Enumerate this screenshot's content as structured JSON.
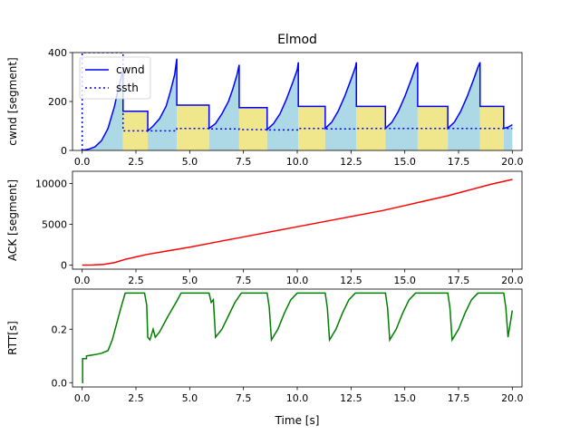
{
  "figure": {
    "title": "Elmod",
    "xlabel": "Time [s]"
  },
  "chart_data": [
    {
      "type": "line",
      "ylabel": "cwnd [segment]",
      "xlim": [
        -0.45,
        20.45
      ],
      "ylim": [
        0,
        400
      ],
      "xticks": [
        0,
        2.5,
        5,
        7.5,
        10,
        12.5,
        15,
        17.5,
        20
      ],
      "xtick_labels": [
        "0.0",
        "2.5",
        "5.0",
        "7.5",
        "10.0",
        "12.5",
        "15.0",
        "17.5",
        "20.0"
      ],
      "yticks": [
        0,
        200,
        400
      ],
      "ytick_labels": [
        "0",
        "200",
        "400"
      ],
      "legend": {
        "position": "top-left",
        "entries": [
          "cwnd",
          "ssth"
        ]
      },
      "shading": {
        "slow_start_color": "#add8e6",
        "congestion_avoidance_color": "#f0e68c",
        "phase_boundaries": [
          1.9,
          3.05,
          4.4,
          5.9,
          7.3,
          8.6,
          10.05,
          11.3,
          12.75,
          14.1,
          15.6,
          17.0,
          18.5,
          19.6,
          20.0
        ]
      },
      "series": [
        {
          "name": "cwnd",
          "color": "#0000ff",
          "style": "solid",
          "x": [
            0,
            0.3,
            0.6,
            0.9,
            1.2,
            1.5,
            1.7,
            1.9,
            1.9,
            3.05,
            3.05,
            3.3,
            3.6,
            3.9,
            4.1,
            4.3,
            4.4,
            4.4,
            5.9,
            5.9,
            6.2,
            6.5,
            6.8,
            7.0,
            7.2,
            7.3,
            7.3,
            8.6,
            8.6,
            8.9,
            9.2,
            9.5,
            9.8,
            10.0,
            10.05,
            10.05,
            11.3,
            11.3,
            11.6,
            11.9,
            12.2,
            12.5,
            12.7,
            12.75,
            12.75,
            14.1,
            14.1,
            14.4,
            14.7,
            15.0,
            15.3,
            15.5,
            15.6,
            15.6,
            17.0,
            17.0,
            17.3,
            17.6,
            17.9,
            18.2,
            18.4,
            18.5,
            18.5,
            19.6,
            19.6,
            19.8,
            20.0
          ],
          "y": [
            0,
            5,
            15,
            40,
            90,
            180,
            260,
            330,
            160,
            160,
            80,
            100,
            130,
            180,
            240,
            310,
            375,
            185,
            185,
            90,
            110,
            150,
            200,
            250,
            310,
            350,
            175,
            175,
            85,
            110,
            150,
            210,
            280,
            330,
            360,
            180,
            180,
            90,
            115,
            160,
            220,
            290,
            340,
            360,
            180,
            180,
            90,
            115,
            160,
            220,
            290,
            340,
            360,
            180,
            180,
            90,
            115,
            160,
            220,
            290,
            340,
            360,
            180,
            180,
            90,
            95,
            105
          ]
        },
        {
          "name": "ssth",
          "color": "#0000ff",
          "style": "dotted",
          "x": [
            0,
            0,
            0.02,
            1.9,
            1.9,
            3.05,
            3.05,
            4.4,
            4.4,
            5.9,
            5.9,
            7.3,
            7.3,
            8.6,
            8.6,
            10.05,
            10.05,
            11.3,
            11.3,
            12.75,
            12.75,
            14.1,
            14.1,
            15.6,
            15.6,
            17.0,
            17.0,
            18.5,
            18.5,
            19.6,
            19.6,
            20.0
          ],
          "y": [
            0,
            400,
            400,
            400,
            80,
            80,
            80,
            80,
            90,
            90,
            88,
            88,
            85,
            85,
            84,
            84,
            90,
            90,
            88,
            88,
            90,
            90,
            90,
            90,
            90,
            90,
            90,
            90,
            90,
            90,
            90,
            90
          ]
        }
      ]
    },
    {
      "type": "line",
      "ylabel": "ACK [segment]",
      "xlim": [
        -0.45,
        20.45
      ],
      "ylim": [
        -500,
        11500
      ],
      "xticks": [
        0,
        2.5,
        5,
        7.5,
        10,
        12.5,
        15,
        17.5,
        20
      ],
      "xtick_labels": [
        "0.0",
        "2.5",
        "5.0",
        "7.5",
        "10.0",
        "12.5",
        "15.0",
        "17.5",
        "20.0"
      ],
      "yticks": [
        0,
        5000,
        10000
      ],
      "ytick_labels": [
        "0",
        "5000",
        "10000"
      ],
      "series": [
        {
          "name": "",
          "color": "#ff0000",
          "style": "solid",
          "x": [
            0,
            0.5,
            1.0,
            1.5,
            2.0,
            2.5,
            3.0,
            4.0,
            5.0,
            6.0,
            7.0,
            8.0,
            9.0,
            10.0,
            11.0,
            12.0,
            13.0,
            14.0,
            15.0,
            16.0,
            17.0,
            18.0,
            19.0,
            20.0
          ],
          "y": [
            0,
            20,
            80,
            300,
            700,
            1000,
            1300,
            1750,
            2200,
            2700,
            3200,
            3700,
            4200,
            4700,
            5200,
            5700,
            6200,
            6700,
            7300,
            7900,
            8500,
            9200,
            9900,
            10500
          ]
        }
      ]
    },
    {
      "type": "line",
      "ylabel": "RTT[s]",
      "xlim": [
        -0.45,
        20.45
      ],
      "ylim": [
        -0.016,
        0.35
      ],
      "xticks": [
        0,
        2.5,
        5,
        7.5,
        10,
        12.5,
        15,
        17.5,
        20
      ],
      "xtick_labels": [
        "0.0",
        "2.5",
        "5.0",
        "7.5",
        "10.0",
        "12.5",
        "15.0",
        "17.5",
        "20.0"
      ],
      "yticks": [
        0,
        0.2
      ],
      "ytick_labels": [
        "0.0",
        "0.2"
      ],
      "series": [
        {
          "name": "",
          "color": "#008000",
          "style": "solid",
          "x": [
            0,
            0.02,
            0.02,
            0.2,
            0.2,
            0.6,
            0.9,
            1.2,
            1.4,
            1.6,
            1.8,
            2.0,
            2.9,
            3.0,
            3.05,
            3.15,
            3.3,
            3.4,
            3.6,
            4.0,
            4.4,
            4.6,
            5.9,
            6.0,
            6.1,
            6.2,
            6.5,
            6.8,
            7.1,
            7.4,
            8.6,
            8.7,
            8.8,
            9.1,
            9.4,
            9.7,
            10.0,
            10.1,
            11.3,
            11.4,
            11.5,
            11.8,
            12.1,
            12.4,
            12.7,
            12.8,
            14.1,
            14.2,
            14.3,
            14.6,
            14.9,
            15.2,
            15.5,
            15.6,
            17.0,
            17.1,
            17.2,
            17.5,
            17.8,
            18.1,
            18.4,
            18.5,
            19.6,
            19.7,
            19.8,
            19.9,
            20.0
          ],
          "y": [
            0,
            0,
            0.09,
            0.09,
            0.1,
            0.105,
            0.11,
            0.12,
            0.16,
            0.22,
            0.28,
            0.335,
            0.335,
            0.29,
            0.17,
            0.16,
            0.2,
            0.17,
            0.19,
            0.25,
            0.305,
            0.335,
            0.335,
            0.3,
            0.31,
            0.17,
            0.2,
            0.25,
            0.3,
            0.335,
            0.335,
            0.28,
            0.16,
            0.2,
            0.26,
            0.31,
            0.335,
            0.335,
            0.335,
            0.28,
            0.16,
            0.2,
            0.26,
            0.31,
            0.335,
            0.335,
            0.335,
            0.28,
            0.16,
            0.2,
            0.26,
            0.31,
            0.335,
            0.335,
            0.335,
            0.28,
            0.16,
            0.2,
            0.26,
            0.31,
            0.335,
            0.335,
            0.335,
            0.28,
            0.17,
            0.22,
            0.27
          ]
        }
      ]
    }
  ]
}
